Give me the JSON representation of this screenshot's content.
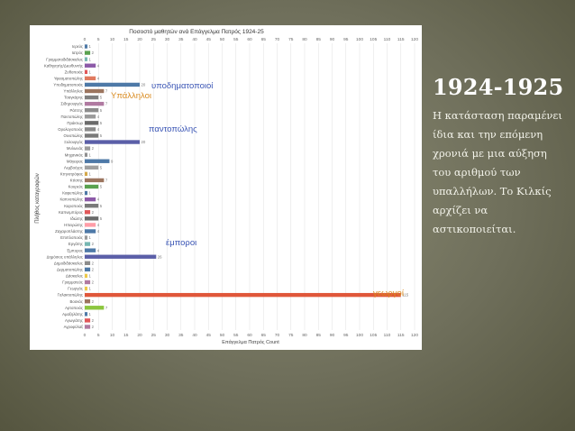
{
  "slide": {
    "title": "1924-1925",
    "body": "Η κατάσταση παραμένει ίδια και την επόμενη χρονιά με μια αύξηση του αριθμού των υπαλλήλων. Το Κιλκίς αρχίζει να αστικοποιείται."
  },
  "annotations": {
    "shoemakers": "υποδηματοποιοί",
    "employees": "Υπάλληλοι",
    "grocers": "παντοπώλης",
    "merchants": "έμποροι",
    "farmers": "γεωργοί"
  },
  "colors": {
    "farmers_bar": "#e0573a",
    "annotation_blue": "#3a55b5",
    "annotation_orange": "#d98a1e",
    "gridline": "#e4e4e4"
  },
  "chart_data": {
    "type": "bar",
    "orientation": "horizontal",
    "title": "Ποσοστό μαθητών ανά Επάγγελμα Πατρός 1924-25",
    "xlabel": "Επάγγελμα Πατρός Count",
    "ylabel": "Πλήθος καταγραφών",
    "xlim": [
      0,
      120
    ],
    "xticks": [
      0,
      5,
      10,
      15,
      20,
      25,
      30,
      35,
      40,
      45,
      50,
      55,
      60,
      65,
      70,
      75,
      80,
      85,
      90,
      95,
      100,
      105,
      110,
      115,
      120
    ],
    "grid": true,
    "categories": [
      "Ιερεύς",
      "Ιατρός",
      "Γραμματοδιδάσκαλος",
      "Καθηγητής/Διευθυντής",
      "Ζυθοποιός",
      "Υφασματοπώλης",
      "Υποδηματοποιός",
      "Υπάλληλος",
      "Τσαγκάρης",
      "Σιδηρουργός",
      "Ράπτης",
      "Παντοπώλης",
      "Πράκτωρ",
      "Ορολογοποιός",
      "Οινοπώλης",
      "Ξυλουργός",
      "Μυλωνάς",
      "Μηχανικός",
      "Μάγειρας",
      "Λεμβούχος",
      "Κτηνοτρόφος",
      "Κτίστης",
      "Κουρεύς",
      "Καφεπώλης",
      "Καπνοπώλης",
      "Καροποιός",
      "Καπνεμπόρος",
      "Ιδιώτης",
      "Ηπειρώτης",
      "Ζαχαροπλάστης",
      "Επιπλοποιός",
      "Εργάτης",
      "Έμπορος",
      "Δημόσιος υπάλληλος",
      "Δημοδιδάσκαλος",
      "Δερματοπώλης",
      "Δάσκαλος",
      "Γραμματεύς",
      "Γεωργός",
      "Γαλακτοπώλης",
      "Βοσκός",
      "Αρτοποιός",
      "Αμαξηλάτης",
      "Αγωγιάτης",
      "Αγροφύλαξ"
    ],
    "values": [
      1,
      2,
      1,
      4,
      1,
      4,
      20,
      7,
      5,
      7,
      5,
      4,
      5,
      4,
      5,
      20,
      2,
      1,
      9,
      5,
      1,
      7,
      5,
      1,
      4,
      5,
      2,
      5,
      4,
      4,
      1,
      2,
      4,
      26,
      2,
      2,
      1,
      2,
      1,
      115,
      2,
      7,
      1,
      2,
      2
    ],
    "bar_colors": [
      "#4e79a7",
      "#59a14f",
      "#76b7b2",
      "#8c5aa8",
      "#e15759",
      "#e07a5f",
      "#4e79a7",
      "#9c755f",
      "#7f7f7f",
      "#b07aa1",
      "#8c8c8c",
      "#9a9a9a",
      "#6b6b6b",
      "#8a8a8a",
      "#7a7a7a",
      "#5b5fa8",
      "#9c9c9c",
      "#8f8f8f",
      "#4e79a7",
      "#a0a0a0",
      "#d4a84a",
      "#9c755f",
      "#59a14f",
      "#4e79a7",
      "#8c5aa8",
      "#7a7a7a",
      "#e15759",
      "#6b6b6b",
      "#ff9da7",
      "#4e79a7",
      "#9a9a9a",
      "#76b7b2",
      "#4e79a7",
      "#5b5fa8",
      "#8c8c8c",
      "#4e79a7",
      "#edc948",
      "#b07aa1",
      "#edc948",
      "#e0573a",
      "#9c755f",
      "#8cc63f",
      "#4e79a7",
      "#e15759",
      "#b07aa1"
    ]
  }
}
